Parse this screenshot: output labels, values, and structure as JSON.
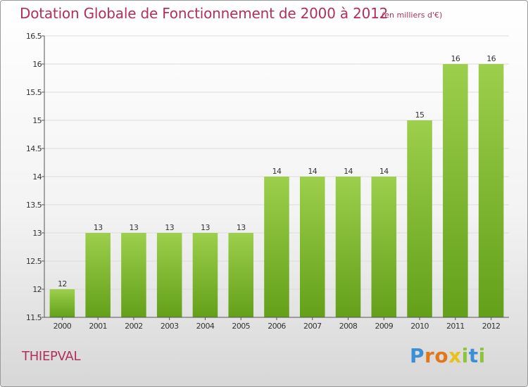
{
  "title": "Dotation Globale de Fonctionnement de 2000 à 2012",
  "subtitle": "(en milliers d'€)",
  "commune": "THIEPVAL",
  "logo": {
    "letters": [
      "P",
      "r",
      "o",
      "x",
      "i",
      "t",
      "i"
    ]
  },
  "colors": {
    "accent": "#b0305a",
    "bar_light": "#9ccf4c",
    "bar_dark": "#63a019"
  },
  "chart_data": {
    "type": "bar",
    "categories": [
      "2000",
      "2001",
      "2002",
      "2003",
      "2004",
      "2005",
      "2006",
      "2007",
      "2008",
      "2009",
      "2010",
      "2011",
      "2012"
    ],
    "values": [
      12,
      13,
      13,
      13,
      13,
      13,
      14,
      14,
      14,
      14,
      15,
      16,
      16
    ],
    "labels": [
      "12",
      "13",
      "13",
      "13",
      "13",
      "13",
      "14",
      "14",
      "14",
      "14",
      "15",
      "16",
      "16"
    ],
    "ylim": [
      11.5,
      16.5
    ],
    "yticks": [
      "11.5",
      "12",
      "12.5",
      "13",
      "13.5",
      "14",
      "14.5",
      "15",
      "15.5",
      "16",
      "16.5"
    ],
    "grid": true,
    "xlabel": "",
    "ylabel": ""
  }
}
